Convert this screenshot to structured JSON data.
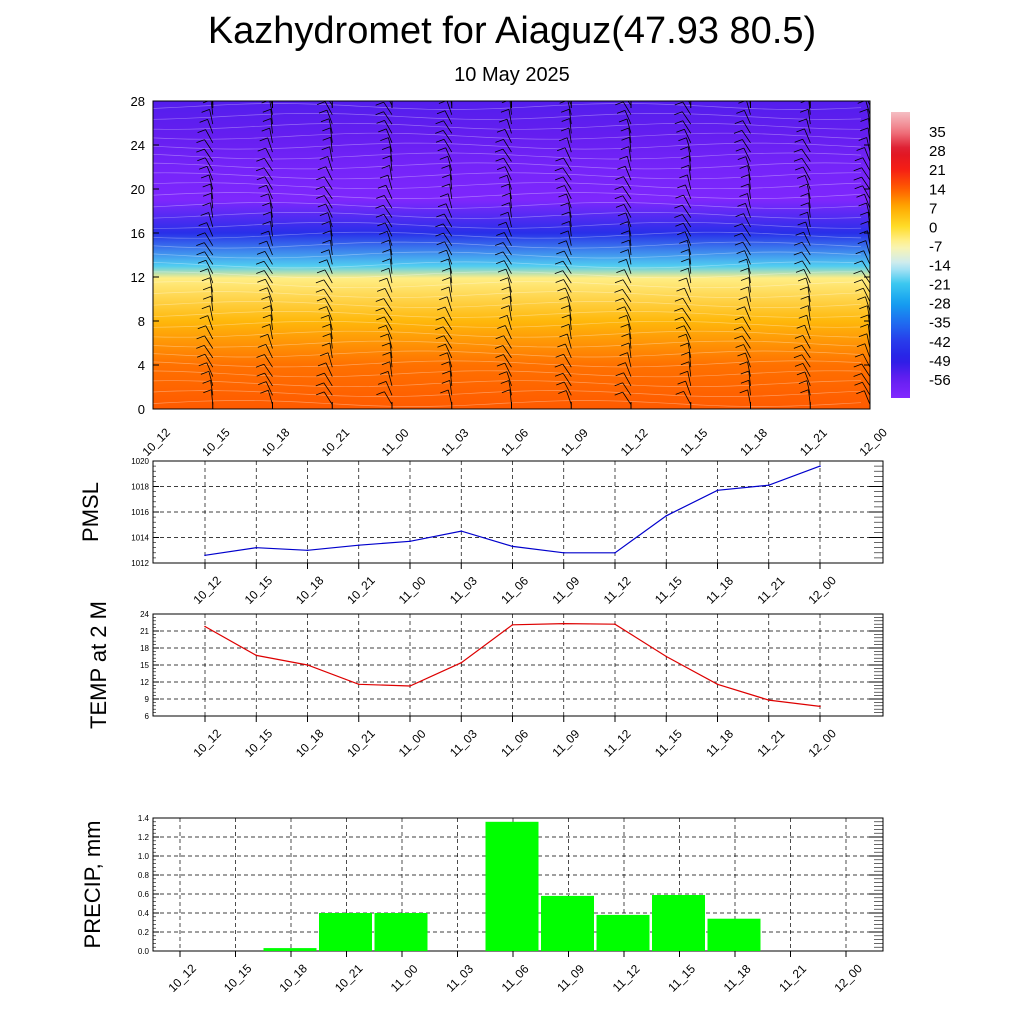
{
  "header": {
    "title": "Kazhydromet for Aiaguz(47.93 80.5)",
    "date": "10 May 2025"
  },
  "chart_data": [
    {
      "type": "heatmap",
      "title": "",
      "xlabel": "",
      "ylabel": "",
      "x_ticks": [
        "10_12",
        "10_15",
        "10_18",
        "10_21",
        "11_00",
        "11_03",
        "11_06",
        "11_09",
        "11_12",
        "11_15",
        "11_18",
        "11_21",
        "12_00"
      ],
      "y_ticks": [
        0,
        4,
        8,
        12,
        16,
        20,
        24,
        28
      ],
      "ylim": [
        0,
        28
      ],
      "colorbar_labels": [
        35,
        28,
        21,
        14,
        7,
        0,
        -7,
        -14,
        -21,
        -28,
        -35,
        -42,
        -49,
        -56
      ],
      "colorbar_range": [
        -63,
        42
      ],
      "overlay": "wind barbs",
      "temperature_profile": [
        {
          "level": 0,
          "value": 14
        },
        {
          "level": 4,
          "value": 12
        },
        {
          "level": 8,
          "value": 5
        },
        {
          "level": 11.9,
          "value": -5
        },
        {
          "level": 13,
          "value": -20
        },
        {
          "level": 16,
          "value": -45
        },
        {
          "level": 19,
          "value": -62
        },
        {
          "level": 22,
          "value": -60
        },
        {
          "level": 25,
          "value": -56
        },
        {
          "level": 28,
          "value": -54
        }
      ]
    },
    {
      "type": "line",
      "ylabel": "PMSL",
      "categories": [
        "10_12",
        "10_15",
        "10_18",
        "10_21",
        "11_00",
        "11_03",
        "11_06",
        "11_09",
        "11_12",
        "11_15",
        "11_18",
        "11_21",
        "12_00"
      ],
      "values": [
        1012.6,
        1013.2,
        1013.0,
        1013.4,
        1013.7,
        1014.5,
        1013.3,
        1012.8,
        1012.8,
        1015.7,
        1017.7,
        1018.1,
        1019.6
      ],
      "ylim": [
        1012,
        1020
      ],
      "y_ticks": [
        1012,
        1014,
        1016,
        1018,
        1020
      ],
      "color": "#0000cc",
      "grid": true
    },
    {
      "type": "line",
      "ylabel": "TEMP at 2 M",
      "categories": [
        "10_12",
        "10_15",
        "10_18",
        "10_21",
        "11_00",
        "11_03",
        "11_06",
        "11_09",
        "11_12",
        "11_15",
        "11_18",
        "11_21",
        "12_00"
      ],
      "values": [
        21.8,
        16.7,
        15.0,
        11.6,
        11.3,
        15.4,
        22.1,
        22.3,
        22.2,
        16.5,
        11.6,
        8.8,
        7.7
      ],
      "ylim": [
        6,
        24
      ],
      "y_ticks": [
        6,
        9,
        12,
        15,
        18,
        21,
        24
      ],
      "color": "#dd0000",
      "grid": true
    },
    {
      "type": "bar",
      "ylabel": "PRECIP, mm",
      "categories": [
        "10_12",
        "10_15",
        "10_18",
        "10_21",
        "11_00",
        "11_03",
        "11_06",
        "11_09",
        "11_12",
        "11_15",
        "11_18",
        "11_21",
        "12_00"
      ],
      "values": [
        0.0,
        0.03,
        0.4,
        0.4,
        0.0,
        1.36,
        0.58,
        0.38,
        0.59,
        0.34,
        0.0,
        0.0,
        0.0
      ],
      "ylim": [
        0,
        1.4
      ],
      "y_ticks": [
        "0.0",
        "0.2",
        "0.4",
        "0.6",
        "0.8",
        "1.0",
        "1.2",
        "1.4"
      ],
      "color": "#00ff00",
      "grid": true
    }
  ]
}
